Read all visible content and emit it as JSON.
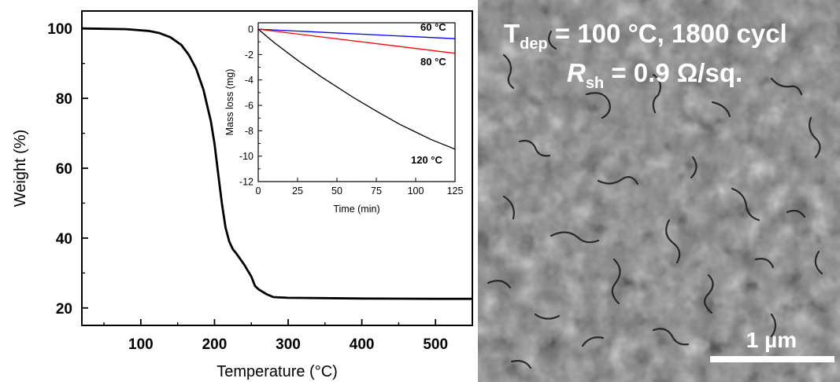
{
  "chart_data": [
    {
      "type": "line",
      "xlabel": "Temperature (°C)",
      "ylabel": "Weight (%)",
      "xlim": [
        20,
        550
      ],
      "ylim": [
        15,
        105
      ],
      "xticks": [
        100,
        200,
        300,
        400,
        500
      ],
      "yticks": [
        20,
        40,
        60,
        80,
        100
      ],
      "grid": false,
      "series": [
        {
          "color": "#000000",
          "x": [
            20,
            80,
            110,
            125,
            140,
            155,
            165,
            175,
            185,
            195,
            200,
            205,
            210,
            215,
            220,
            225,
            230,
            240,
            250,
            255,
            260,
            270,
            280,
            300,
            350,
            400,
            500,
            550
          ],
          "y": [
            100,
            99.8,
            99.3,
            98.7,
            97.5,
            95.3,
            92.5,
            88.5,
            82.5,
            73.5,
            67,
            58.5,
            50,
            43,
            39,
            36.8,
            35.5,
            32.5,
            29,
            26.3,
            25.3,
            24,
            23.1,
            22.9,
            22.8,
            22.7,
            22.6,
            22.6
          ]
        }
      ]
    },
    {
      "type": "line",
      "inset": true,
      "xlabel": "Time (min)",
      "ylabel": "Mass loss (mg)",
      "xlim": [
        0,
        125
      ],
      "ylim": [
        -12,
        0.5
      ],
      "xticks": [
        0,
        25,
        50,
        75,
        100,
        125
      ],
      "yticks": [
        0,
        -2,
        -4,
        -6,
        -8,
        -10,
        -12
      ],
      "series": [
        {
          "name": "60 °C",
          "color": "#0000ff",
          "x": [
            0,
            125
          ],
          "y": [
            0,
            -0.75
          ]
        },
        {
          "name": "80 °C",
          "color": "#ff0000",
          "x": [
            0,
            125
          ],
          "y": [
            0,
            -1.9
          ]
        },
        {
          "name": "120 °C",
          "color": "#000000",
          "x": [
            0,
            10,
            25,
            40,
            50,
            60,
            75,
            90,
            100,
            110,
            125
          ],
          "y": [
            0,
            -1.05,
            -2.45,
            -3.75,
            -4.55,
            -5.35,
            -6.45,
            -7.5,
            -8.1,
            -8.7,
            -9.45
          ]
        }
      ]
    }
  ],
  "sem_image": {
    "line1_main": "T",
    "line1_sub": "dep",
    "line1_rest": " = 100 °C, 1800 cycl",
    "line2_main": "R",
    "line2_sub": "sh",
    "line2_rest": " = 0.9 Ω/sq.",
    "scale_bar_label": "1 µm"
  }
}
